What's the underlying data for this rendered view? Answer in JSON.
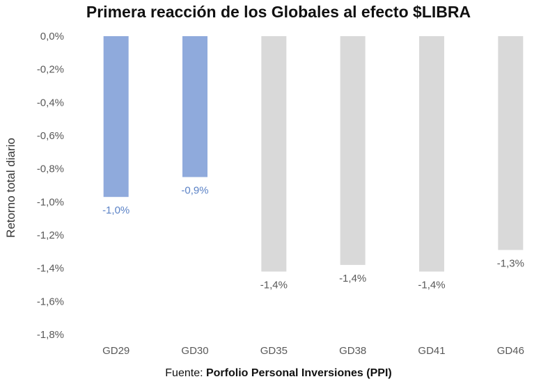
{
  "chart_data": {
    "type": "bar",
    "title": "Primera reacción de los Globales al efecto $LIBRA",
    "xlabel": "",
    "ylabel": "Retorno total diario",
    "categories": [
      "GD29",
      "GD30",
      "GD35",
      "GD38",
      "GD41",
      "GD46"
    ],
    "values": [
      -0.97,
      -0.85,
      -1.42,
      -1.38,
      -1.42,
      -1.29
    ],
    "data_labels": [
      "-1,0%",
      "-0,9%",
      "-1,4%",
      "-1,4%",
      "-1,4%",
      "-1,3%"
    ],
    "bar_colors": [
      "#8faadc",
      "#8faadc",
      "#d9d9d9",
      "#d9d9d9",
      "#d9d9d9",
      "#d9d9d9"
    ],
    "label_colors": [
      "#5b82c6",
      "#5b82c6",
      "#595959",
      "#595959",
      "#595959",
      "#595959"
    ],
    "ylim": [
      -1.8,
      0
    ],
    "yticks": [
      0,
      -0.2,
      -0.4,
      -0.6,
      -0.8,
      -1.0,
      -1.2,
      -1.4,
      -1.6,
      -1.8
    ],
    "ytick_labels": [
      "0,0%",
      "-0,2%",
      "-0,4%",
      "-0,6%",
      "-0,8%",
      "-1,0%",
      "-1,2%",
      "-1,4%",
      "-1,6%",
      "-1,8%"
    ],
    "grid": false,
    "legend": "none"
  },
  "source": {
    "prefix": "Fuente: ",
    "name": "Porfolio Personal Inversiones (PPI)"
  }
}
